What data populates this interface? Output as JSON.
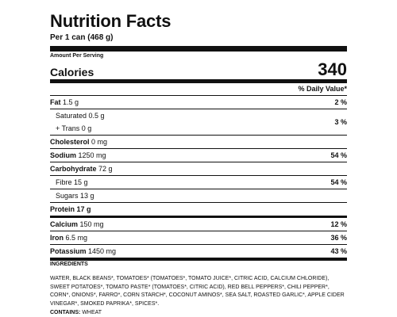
{
  "label": {
    "title": "Nutrition Facts",
    "serving": "Per 1 can (468 g)",
    "amount_per_serving": "Amount Per Serving",
    "calories_label": "Calories",
    "calories_value": "340",
    "daily_value_header": "% Daily Value*"
  },
  "nutrients": {
    "fat": {
      "name": "Fat",
      "amount": "1.5 g",
      "dv": "2 %"
    },
    "saturated": {
      "name": "Saturated",
      "amount": "0.5 g"
    },
    "trans": {
      "name": "+ Trans",
      "amount": "0 g"
    },
    "sat_trans_dv": "3 %",
    "cholesterol": {
      "name": "Cholesterol",
      "amount": "0 mg"
    },
    "sodium": {
      "name": "Sodium",
      "amount": "1250 mg",
      "dv": "54 %"
    },
    "carbohydrate": {
      "name": "Carbohydrate",
      "amount": "72 g"
    },
    "fibre": {
      "name": "Fibre",
      "amount": "15 g",
      "dv": "54 %"
    },
    "sugars": {
      "name": "Sugars",
      "amount": "13 g"
    },
    "protein": {
      "name": "Protein",
      "amount": "17 g"
    },
    "calcium": {
      "name": "Calcium",
      "amount": "150 mg",
      "dv": "12 %"
    },
    "iron": {
      "name": "Iron",
      "amount": "6.5 mg",
      "dv": "36 %"
    },
    "potassium": {
      "name": "Potassium",
      "amount": "1450 mg",
      "dv": "43 %"
    }
  },
  "ingredients": {
    "heading": "INGREDIENTS",
    "text": "WATER, BLACK BEANS*, TOMATOES* (TOMATOES*, TOMATO JUICE*, CITRIC ACID, CALCIUM CHLORIDE), SWEET POTATOES*, TOMATO PASTE* (TOMATOES*, CITRIC ACID), RED BELL PEPPERS*, CHILI PEPPER*, CORN*, ONIONS*, FARRO*, CORN STARCH*, COCONUT AMINOS*, SEA SALT, ROASTED GARLIC*, APPLE CIDER VINEGAR*, SMOKED PAPRIKA*, SPICES*.",
    "contains_label": "CONTAINS:",
    "contains_value": "WHEAT"
  }
}
